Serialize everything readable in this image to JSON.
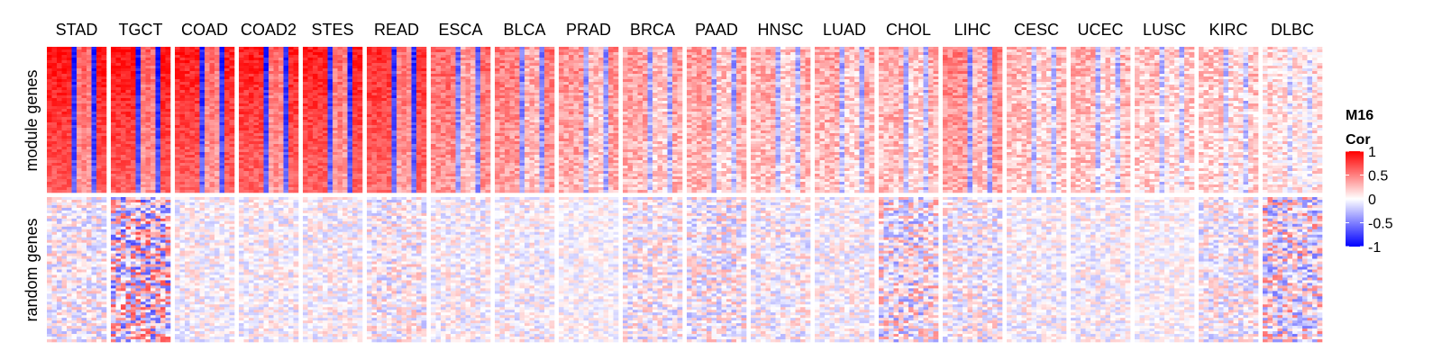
{
  "chart_data": {
    "type": "heatmap",
    "columns": [
      "STAD",
      "TGCT",
      "COAD",
      "COAD2",
      "STES",
      "READ",
      "ESCA",
      "BLCA",
      "PRAD",
      "BRCA",
      "PAAD",
      "HNSC",
      "LUAD",
      "CHOL",
      "LIHC",
      "CESC",
      "UCEC",
      "LUSC",
      "KIRC",
      "DLBC"
    ],
    "row_groups": [
      "module genes",
      "random genes"
    ],
    "legend": {
      "title_line1": "M16",
      "title_line2": "Cor",
      "ticks": [
        "1",
        "0.5",
        "0",
        "-0.5",
        "-1"
      ],
      "tick_values": [
        1,
        0.5,
        0,
        -0.5,
        -1
      ],
      "range": [
        -1,
        1
      ],
      "colors": {
        "low": "#0000ff",
        "mid": "#ffffff",
        "high": "#ff0000"
      }
    },
    "module_mean_strength": [
      0.95,
      0.95,
      0.9,
      0.9,
      0.9,
      0.85,
      0.6,
      0.55,
      0.45,
      0.4,
      0.4,
      0.35,
      0.35,
      0.35,
      0.5,
      0.3,
      0.3,
      0.25,
      0.25,
      0.15
    ],
    "random_noise_level": [
      0.2,
      0.45,
      0.15,
      0.15,
      0.15,
      0.2,
      0.15,
      0.15,
      0.12,
      0.2,
      0.22,
      0.18,
      0.15,
      0.3,
      0.2,
      0.15,
      0.15,
      0.12,
      0.2,
      0.35
    ]
  }
}
